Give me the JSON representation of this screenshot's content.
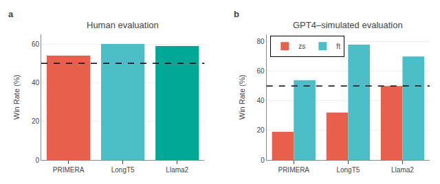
{
  "chart_data": [
    {
      "type": "bar",
      "title": "Human evaluation",
      "categories": [
        "PRIMERA",
        "LongT5",
        "Llama2"
      ],
      "values": [
        54,
        60,
        59
      ],
      "colors": [
        "#E8604C",
        "#4BBEC8",
        "#00A896"
      ],
      "ylabel": "Win Rate (%)",
      "ylim": [
        0,
        65
      ],
      "yticks": [
        0,
        20,
        40,
        60
      ],
      "hline": 50,
      "grid": true,
      "annotations": [
        "a"
      ]
    },
    {
      "type": "bar",
      "title": "GPT4–simulated evaluation",
      "categories": [
        "PRIMERA",
        "LongT5",
        "Llama2"
      ],
      "series": [
        {
          "name": "zs",
          "color": "#E8604C",
          "values": [
            19,
            32,
            50
          ]
        },
        {
          "name": "ft",
          "color": "#4BBEC8",
          "values": [
            54,
            78,
            70
          ]
        }
      ],
      "ylabel": "Win Rate (%)",
      "ylim": [
        0,
        85
      ],
      "yticks": [
        0,
        20,
        40,
        60,
        80
      ],
      "hline": 50,
      "grid": true,
      "legend": "upper left",
      "annotations": [
        "b"
      ]
    }
  ]
}
